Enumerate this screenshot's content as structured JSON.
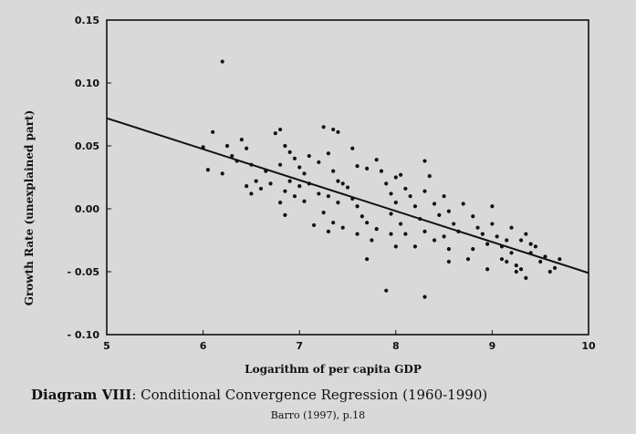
{
  "caption": {
    "label": "Diagram VIII",
    "text": ": Conditional Convergence Regression (1960-1990)",
    "source": "Barro (1997), p.18"
  },
  "chart_data": {
    "type": "scatter",
    "xlabel": "Logarithm of per capita GDP",
    "ylabel": "Growth Rate (unexplained part)",
    "xlim": [
      5,
      10
    ],
    "ylim": [
      -0.1,
      0.15
    ],
    "x_ticks": [
      5,
      6,
      7,
      8,
      9,
      10
    ],
    "x_tick_labels": [
      "5",
      "6",
      "7",
      "8",
      "9",
      "10"
    ],
    "y_ticks": [
      0.15,
      0.1,
      0.05,
      0.0,
      -0.05,
      -0.1
    ],
    "y_tick_labels": [
      "0.15",
      "0.10",
      "0.05",
      "0.00",
      "- 0.05",
      "- 0.10"
    ],
    "grid": false,
    "fit_line": {
      "x": [
        5,
        10
      ],
      "y": [
        0.072,
        -0.051
      ]
    },
    "colors": {
      "points": "#111111",
      "line": "#111111",
      "frame": "#111111"
    },
    "points": [
      [
        6.2,
        0.117
      ],
      [
        6.0,
        0.049
      ],
      [
        6.1,
        0.061
      ],
      [
        6.25,
        0.05
      ],
      [
        6.3,
        0.042
      ],
      [
        6.35,
        0.038
      ],
      [
        6.05,
        0.031
      ],
      [
        6.2,
        0.028
      ],
      [
        6.4,
        0.055
      ],
      [
        6.45,
        0.048
      ],
      [
        6.5,
        0.035
      ],
      [
        6.45,
        0.018
      ],
      [
        6.5,
        0.012
      ],
      [
        6.6,
        0.016
      ],
      [
        6.7,
        0.02
      ],
      [
        6.65,
        0.03
      ],
      [
        6.55,
        0.022
      ],
      [
        6.75,
        0.06
      ],
      [
        6.8,
        0.063
      ],
      [
        6.85,
        0.05
      ],
      [
        6.9,
        0.045
      ],
      [
        6.8,
        0.035
      ],
      [
        6.95,
        0.04
      ],
      [
        7.0,
        0.033
      ],
      [
        7.05,
        0.028
      ],
      [
        6.9,
        0.022
      ],
      [
        6.85,
        0.014
      ],
      [
        6.95,
        0.01
      ],
      [
        7.0,
        0.018
      ],
      [
        7.1,
        0.042
      ],
      [
        7.1,
        0.02
      ],
      [
        6.8,
        0.005
      ],
      [
        6.85,
        -0.005
      ],
      [
        7.05,
        0.006
      ],
      [
        7.15,
        -0.013
      ],
      [
        7.2,
        0.012
      ],
      [
        7.25,
        0.065
      ],
      [
        7.35,
        0.063
      ],
      [
        7.4,
        0.061
      ],
      [
        7.3,
        0.044
      ],
      [
        7.2,
        0.037
      ],
      [
        7.35,
        0.03
      ],
      [
        7.4,
        0.022
      ],
      [
        7.45,
        0.02
      ],
      [
        7.5,
        0.017
      ],
      [
        7.3,
        0.01
      ],
      [
        7.4,
        0.005
      ],
      [
        7.25,
        -0.003
      ],
      [
        7.35,
        -0.011
      ],
      [
        7.45,
        -0.015
      ],
      [
        7.3,
        -0.018
      ],
      [
        7.55,
        0.048
      ],
      [
        7.6,
        0.034
      ],
      [
        7.7,
        0.032
      ],
      [
        7.8,
        0.039
      ],
      [
        7.85,
        0.03
      ],
      [
        7.55,
        0.008
      ],
      [
        7.6,
        0.002
      ],
      [
        7.65,
        -0.006
      ],
      [
        7.7,
        -0.011
      ],
      [
        7.8,
        -0.016
      ],
      [
        7.75,
        -0.025
      ],
      [
        7.7,
        -0.04
      ],
      [
        7.6,
        -0.02
      ],
      [
        7.9,
        0.02
      ],
      [
        7.95,
        0.012
      ],
      [
        8.0,
        0.025
      ],
      [
        8.05,
        0.027
      ],
      [
        8.1,
        0.016
      ],
      [
        8.0,
        0.005
      ],
      [
        7.95,
        -0.004
      ],
      [
        8.05,
        -0.012
      ],
      [
        8.1,
        -0.02
      ],
      [
        8.0,
        -0.03
      ],
      [
        7.9,
        -0.065
      ],
      [
        7.95,
        -0.02
      ],
      [
        8.15,
        0.01
      ],
      [
        8.2,
        0.002
      ],
      [
        8.25,
        -0.008
      ],
      [
        8.3,
        0.038
      ],
      [
        8.35,
        0.026
      ],
      [
        8.3,
        0.014
      ],
      [
        8.4,
        0.004
      ],
      [
        8.45,
        -0.005
      ],
      [
        8.3,
        -0.018
      ],
      [
        8.2,
        -0.03
      ],
      [
        8.3,
        -0.07
      ],
      [
        8.4,
        -0.025
      ],
      [
        8.5,
        0.01
      ],
      [
        8.55,
        -0.002
      ],
      [
        8.6,
        -0.012
      ],
      [
        8.5,
        -0.022
      ],
      [
        8.55,
        -0.032
      ],
      [
        8.55,
        -0.042
      ],
      [
        8.65,
        -0.018
      ],
      [
        8.7,
        0.004
      ],
      [
        8.8,
        -0.006
      ],
      [
        8.85,
        -0.015
      ],
      [
        8.9,
        -0.02
      ],
      [
        8.8,
        -0.032
      ],
      [
        8.75,
        -0.04
      ],
      [
        8.95,
        -0.028
      ],
      [
        8.95,
        -0.048
      ],
      [
        9.0,
        0.002
      ],
      [
        9.0,
        -0.012
      ],
      [
        9.05,
        -0.022
      ],
      [
        9.1,
        -0.03
      ],
      [
        9.1,
        -0.04
      ],
      [
        9.15,
        -0.025
      ],
      [
        9.2,
        -0.035
      ],
      [
        9.25,
        -0.045
      ],
      [
        9.3,
        -0.025
      ],
      [
        9.3,
        -0.048
      ],
      [
        9.35,
        -0.02
      ],
      [
        9.4,
        -0.035
      ],
      [
        9.35,
        -0.055
      ],
      [
        9.45,
        -0.03
      ],
      [
        9.5,
        -0.042
      ],
      [
        9.55,
        -0.038
      ],
      [
        9.6,
        -0.05
      ],
      [
        9.65,
        -0.047
      ],
      [
        9.7,
        -0.04
      ],
      [
        9.2,
        -0.015
      ],
      [
        9.25,
        -0.05
      ],
      [
        9.4,
        -0.028
      ],
      [
        9.15,
        -0.042
      ]
    ]
  }
}
